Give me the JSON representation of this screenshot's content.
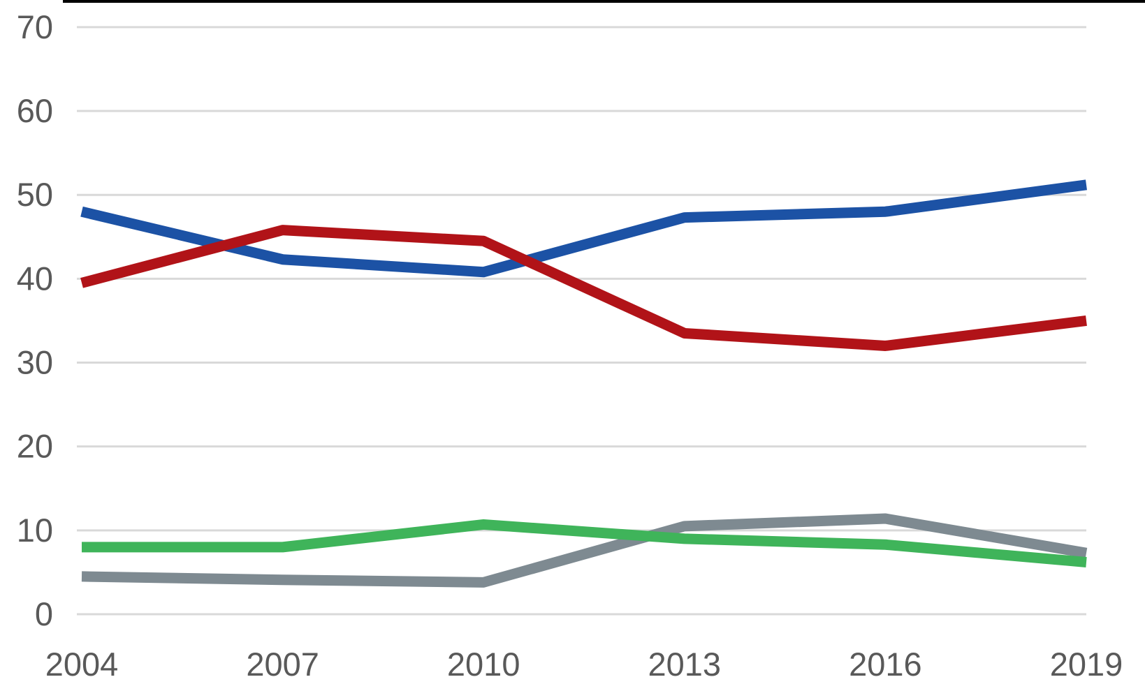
{
  "page": {
    "background_color": "#FFFFFF",
    "top_bar_color": "#000000"
  },
  "chart_data": {
    "type": "line",
    "title": "",
    "x_labels": [
      "2004",
      "2007",
      "2010",
      "2013",
      "2016",
      "2019"
    ],
    "y_ticks": [
      0,
      10,
      20,
      30,
      40,
      50,
      60,
      70
    ],
    "ylim": [
      0,
      70
    ],
    "grid": true,
    "legend_position": "none",
    "gridline_color": "#D9D9D9",
    "axis_label_color": "#595959",
    "series": [
      {
        "name": "blue-line",
        "color": "#1C52A5",
        "values": [
          48.0,
          42.3,
          40.8,
          47.3,
          48.0,
          51.2
        ]
      },
      {
        "name": "red-line",
        "color": "#B11318",
        "values": [
          39.5,
          45.8,
          44.5,
          33.5,
          32.0,
          35.0
        ]
      },
      {
        "name": "gray-line",
        "color": "#7E8A91",
        "values": [
          4.5,
          4.1,
          3.8,
          10.5,
          11.4,
          7.3
        ]
      },
      {
        "name": "green-line",
        "color": "#3FB45A",
        "values": [
          8.0,
          8.0,
          10.7,
          9.0,
          8.3,
          6.2
        ]
      }
    ]
  }
}
